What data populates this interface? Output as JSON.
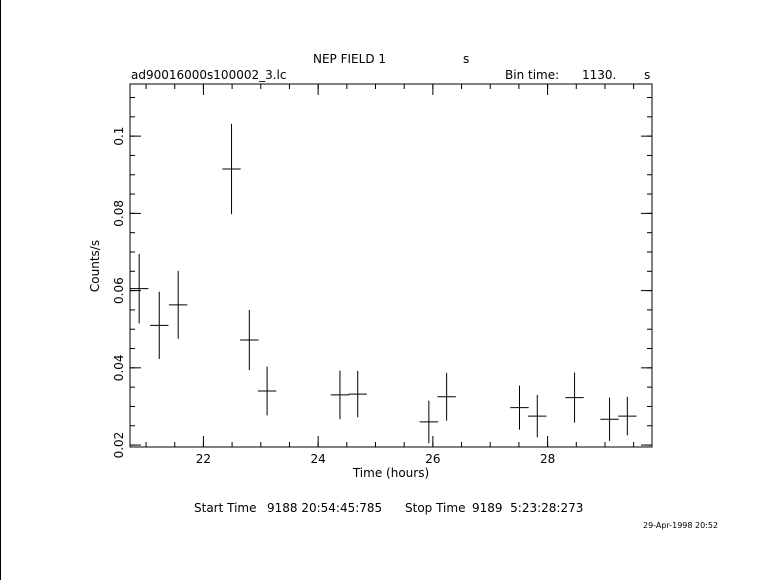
{
  "header": {
    "title": "NEP FIELD 1",
    "title_unit": "s",
    "filename": "ad90016000s100002_3.lc",
    "bin_time_label": "Bin time:",
    "bin_time_value": "1130.",
    "bin_time_unit": "s"
  },
  "footer": {
    "start_label": "Start Time",
    "start_value": "9188 20:54:45:785",
    "stop_label": "Stop Time",
    "stop_value": "9189  5:23:28:273",
    "stamp": "29-Apr-1998 20:52"
  },
  "chart_data": {
    "type": "scatter",
    "xlabel": "Time (hours)",
    "ylabel": "Counts/s",
    "xlim": [
      20.72,
      29.82
    ],
    "ylim": [
      0.0195,
      0.1135
    ],
    "xticks": [
      22,
      24,
      26,
      28
    ],
    "yticks": [
      0.02,
      0.04,
      0.06,
      0.08,
      0.1
    ],
    "ytick_labels": [
      "0.02",
      "0.04",
      "0.06",
      "0.08",
      "0.1"
    ],
    "points": [
      {
        "x": 20.88,
        "xerr": 0.16,
        "y": 0.0605,
        "yerr": 0.009
      },
      {
        "x": 21.23,
        "xerr": 0.16,
        "y": 0.051,
        "yerr": 0.0087
      },
      {
        "x": 21.56,
        "xerr": 0.16,
        "y": 0.0563,
        "yerr": 0.0088
      },
      {
        "x": 22.49,
        "xerr": 0.16,
        "y": 0.0915,
        "yerr": 0.0117
      },
      {
        "x": 22.8,
        "xerr": 0.16,
        "y": 0.0472,
        "yerr": 0.0078
      },
      {
        "x": 23.11,
        "xerr": 0.16,
        "y": 0.034,
        "yerr": 0.0063
      },
      {
        "x": 24.38,
        "xerr": 0.16,
        "y": 0.033,
        "yerr": 0.0063
      },
      {
        "x": 24.69,
        "xerr": 0.16,
        "y": 0.0332,
        "yerr": 0.006
      },
      {
        "x": 25.93,
        "xerr": 0.16,
        "y": 0.026,
        "yerr": 0.0055
      },
      {
        "x": 26.24,
        "xerr": 0.16,
        "y": 0.0325,
        "yerr": 0.0062
      },
      {
        "x": 27.51,
        "xerr": 0.16,
        "y": 0.0297,
        "yerr": 0.0057
      },
      {
        "x": 27.82,
        "xerr": 0.16,
        "y": 0.0275,
        "yerr": 0.0055
      },
      {
        "x": 28.47,
        "xerr": 0.16,
        "y": 0.0323,
        "yerr": 0.0065
      },
      {
        "x": 29.08,
        "xerr": 0.16,
        "y": 0.0267,
        "yerr": 0.0056
      },
      {
        "x": 29.39,
        "xerr": 0.16,
        "y": 0.0275,
        "yerr": 0.005
      }
    ]
  }
}
